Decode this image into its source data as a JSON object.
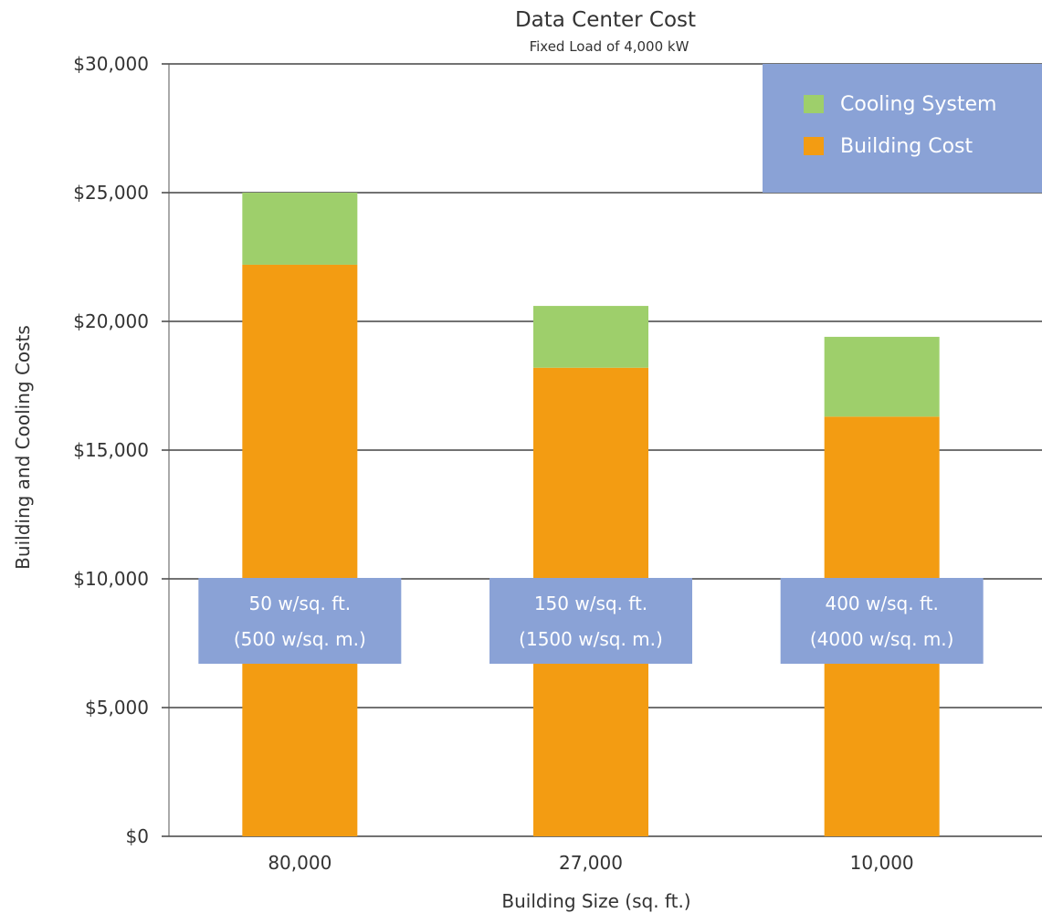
{
  "chart_data": {
    "type": "bar",
    "stacked": true,
    "title": "Data Center Cost",
    "subtitle": "Fixed Load of 4,000 kW",
    "xlabel": "Building Size (sq. ft.)",
    "ylabel": "Building and Cooling Costs",
    "categories": [
      "80,000",
      "27,000",
      "10,000"
    ],
    "ylim": [
      0,
      30000
    ],
    "yticks": [
      0,
      5000,
      10000,
      15000,
      20000,
      25000,
      30000
    ],
    "ytick_labels": [
      "$0",
      "$5,000",
      "$10,000",
      "$15,000",
      "$20,000",
      "$25,000",
      "$30,000"
    ],
    "grid": true,
    "legend_position": "top-right",
    "series": [
      {
        "name": "Building Cost",
        "color": "#f39c12",
        "values": [
          22200,
          18200,
          16300
        ]
      },
      {
        "name": "Cooling System",
        "color": "#9ecf6b",
        "values": [
          2800,
          2400,
          3100
        ]
      }
    ],
    "legend_order": [
      "Cooling System",
      "Building Cost"
    ],
    "annotations": [
      {
        "line1": "50 w/sq. ft.",
        "line2": "(500 w/sq. m.)"
      },
      {
        "line1": "150 w/sq. ft.",
        "line2": "(1500 w/sq. m.)"
      },
      {
        "line1": "400 w/sq. ft.",
        "line2": "(4000 w/sq. m.)"
      }
    ],
    "colors": {
      "label_box": "#8aa2d6",
      "grid": "#444444"
    }
  }
}
